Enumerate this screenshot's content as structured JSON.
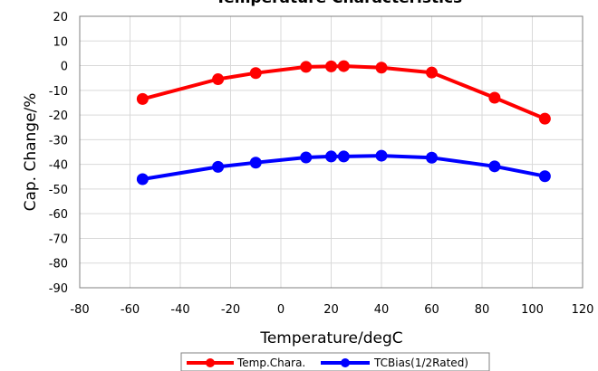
{
  "chart_data": {
    "type": "line",
    "title": "Temperature Characteristics",
    "xlabel": "Temperature/degC",
    "ylabel": "Cap. Change/%",
    "xlim": [
      -80,
      120
    ],
    "ylim": [
      -90,
      20
    ],
    "xticks": [
      -80,
      -60,
      -40,
      -20,
      0,
      20,
      40,
      60,
      80,
      100,
      120
    ],
    "yticks": [
      20,
      10,
      0,
      -10,
      -20,
      -30,
      -40,
      -50,
      -60,
      -70,
      -80,
      -90
    ],
    "grid": true,
    "legend_position": "bottom",
    "series": [
      {
        "name": "Temp.Chara.",
        "color": "#ff0000",
        "x": [
          -55,
          -25,
          -10,
          10,
          20,
          25,
          40,
          60,
          85,
          105
        ],
        "y": [
          -13.5,
          -5.5,
          -3,
          -0.5,
          -0.3,
          -0.2,
          -0.8,
          -2.8,
          -13,
          -21.5
        ]
      },
      {
        "name": "TCBias(1/2Rated)",
        "color": "#0000ff",
        "x": [
          -55,
          -25,
          -10,
          10,
          20,
          25,
          40,
          60,
          85,
          105
        ],
        "y": [
          -46,
          -41,
          -39.3,
          -37.2,
          -36.8,
          -36.8,
          -36.5,
          -37.3,
          -40.8,
          -44.8
        ]
      }
    ]
  }
}
